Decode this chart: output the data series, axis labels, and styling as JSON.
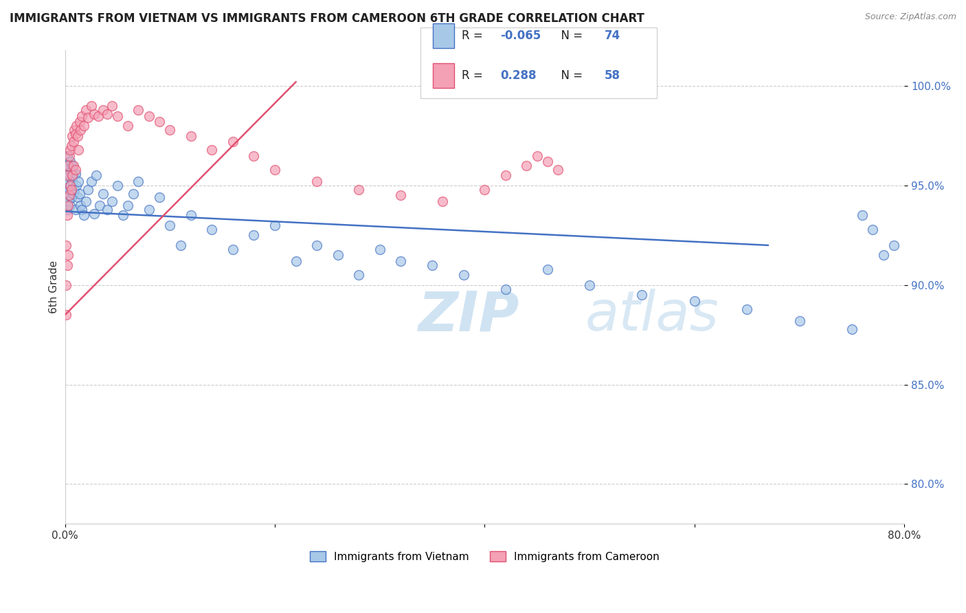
{
  "title": "IMMIGRANTS FROM VIETNAM VS IMMIGRANTS FROM CAMEROON 6TH GRADE CORRELATION CHART",
  "source": "Source: ZipAtlas.com",
  "xlabel_blue": "Immigrants from Vietnam",
  "xlabel_pink": "Immigrants from Cameroon",
  "ylabel": "6th Grade",
  "xmin": 0.0,
  "xmax": 0.8,
  "ymin": 0.78,
  "ymax": 1.018,
  "yticks": [
    0.8,
    0.85,
    0.9,
    0.95,
    1.0
  ],
  "ytick_labels": [
    "80.0%",
    "85.0%",
    "90.0%",
    "95.0%",
    "100.0%"
  ],
  "xticks": [
    0.0,
    0.2,
    0.4,
    0.6,
    0.8
  ],
  "xtick_labels": [
    "0.0%",
    "",
    "",
    "",
    "80.0%"
  ],
  "blue_color": "#a8c8e8",
  "pink_color": "#f4a0b5",
  "blue_line_color": "#4472c4",
  "pink_line_color": "#e05070",
  "watermark_zip": "ZIP",
  "watermark_atlas": "atlas",
  "blue_scatter_x": [
    0.001,
    0.001,
    0.001,
    0.002,
    0.002,
    0.002,
    0.002,
    0.003,
    0.003,
    0.003,
    0.004,
    0.004,
    0.005,
    0.005,
    0.005,
    0.006,
    0.006,
    0.007,
    0.007,
    0.008,
    0.008,
    0.009,
    0.01,
    0.01,
    0.011,
    0.012,
    0.013,
    0.014,
    0.015,
    0.016,
    0.018,
    0.02,
    0.022,
    0.025,
    0.028,
    0.03,
    0.033,
    0.036,
    0.04,
    0.045,
    0.05,
    0.055,
    0.06,
    0.065,
    0.07,
    0.08,
    0.09,
    0.1,
    0.11,
    0.12,
    0.14,
    0.16,
    0.18,
    0.2,
    0.22,
    0.24,
    0.26,
    0.28,
    0.3,
    0.32,
    0.35,
    0.38,
    0.42,
    0.46,
    0.5,
    0.55,
    0.6,
    0.65,
    0.7,
    0.75,
    0.76,
    0.77,
    0.78,
    0.79
  ],
  "blue_scatter_y": [
    0.96,
    0.955,
    0.95,
    0.958,
    0.945,
    0.965,
    0.938,
    0.96,
    0.942,
    0.952,
    0.955,
    0.948,
    0.962,
    0.94,
    0.95,
    0.958,
    0.944,
    0.952,
    0.96,
    0.946,
    0.955,
    0.948,
    0.956,
    0.938,
    0.95,
    0.944,
    0.952,
    0.946,
    0.94,
    0.938,
    0.935,
    0.942,
    0.948,
    0.952,
    0.936,
    0.955,
    0.94,
    0.946,
    0.938,
    0.942,
    0.95,
    0.935,
    0.94,
    0.946,
    0.952,
    0.938,
    0.944,
    0.93,
    0.92,
    0.935,
    0.928,
    0.918,
    0.925,
    0.93,
    0.912,
    0.92,
    0.915,
    0.905,
    0.918,
    0.912,
    0.91,
    0.905,
    0.898,
    0.908,
    0.9,
    0.895,
    0.892,
    0.888,
    0.882,
    0.878,
    0.935,
    0.928,
    0.915,
    0.92
  ],
  "pink_scatter_x": [
    0.001,
    0.001,
    0.001,
    0.002,
    0.002,
    0.002,
    0.003,
    0.003,
    0.003,
    0.004,
    0.004,
    0.005,
    0.005,
    0.006,
    0.006,
    0.007,
    0.007,
    0.008,
    0.008,
    0.009,
    0.01,
    0.01,
    0.011,
    0.012,
    0.013,
    0.014,
    0.015,
    0.016,
    0.018,
    0.02,
    0.022,
    0.025,
    0.028,
    0.032,
    0.036,
    0.04,
    0.045,
    0.05,
    0.06,
    0.07,
    0.08,
    0.09,
    0.1,
    0.12,
    0.14,
    0.16,
    0.18,
    0.2,
    0.24,
    0.28,
    0.32,
    0.36,
    0.4,
    0.42,
    0.44,
    0.45,
    0.46,
    0.47
  ],
  "pink_scatter_y": [
    0.92,
    0.9,
    0.885,
    0.955,
    0.935,
    0.91,
    0.96,
    0.94,
    0.915,
    0.965,
    0.945,
    0.968,
    0.95,
    0.97,
    0.948,
    0.975,
    0.955,
    0.972,
    0.96,
    0.978,
    0.976,
    0.958,
    0.98,
    0.975,
    0.968,
    0.982,
    0.978,
    0.985,
    0.98,
    0.988,
    0.984,
    0.99,
    0.986,
    0.985,
    0.988,
    0.986,
    0.99,
    0.985,
    0.98,
    0.988,
    0.985,
    0.982,
    0.978,
    0.975,
    0.968,
    0.972,
    0.965,
    0.958,
    0.952,
    0.948,
    0.945,
    0.942,
    0.948,
    0.955,
    0.96,
    0.965,
    0.962,
    0.958
  ],
  "blue_line_x0": 0.0,
  "blue_line_y0": 0.937,
  "blue_line_x1": 0.67,
  "blue_line_y1": 0.92,
  "pink_line_x0": 0.0,
  "pink_line_y0": 0.885,
  "pink_line_x1": 0.22,
  "pink_line_y1": 1.002
}
